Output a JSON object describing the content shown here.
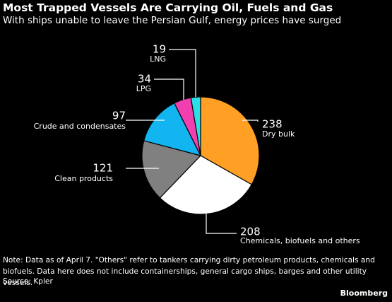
{
  "header": {
    "title": "Most Trapped Vessels Are Carrying Oil, Fuels and Gas",
    "subtitle": "With ships unable to leave the Persian Gulf, energy prices have surged"
  },
  "chart_data": {
    "type": "pie",
    "title": "Most Trapped Vessels Are Carrying Oil, Fuels and Gas",
    "subtitle": "With ships unable to leave the Persian Gulf, energy prices have surged",
    "slices": [
      {
        "label": "Dry bulk",
        "value": 238,
        "color": "#ffa025"
      },
      {
        "label": "Chemicals, biofuels and others",
        "value": 208,
        "color": "#ffffff"
      },
      {
        "label": "Clean products",
        "value": 121,
        "color": "#808080"
      },
      {
        "label": "Crude and condensates",
        "value": 97,
        "color": "#13b5f0"
      },
      {
        "label": "LPG",
        "value": 34,
        "color": "#f23fb0"
      },
      {
        "label": "LNG",
        "value": 19,
        "color": "#29e0e8"
      }
    ],
    "legend": "none"
  },
  "footer": {
    "note": "Note: Data as of April 7. \"Others\" refer to tankers carrying dirty petroleum products, chemicals and biofuels. Data here does not include containerships, general cargo ships, barges and other utility vessels.",
    "source": "Source: Kpler",
    "brand": "Bloomberg"
  }
}
